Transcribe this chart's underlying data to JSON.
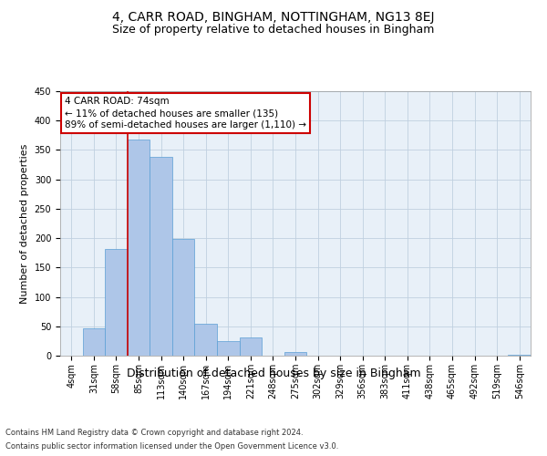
{
  "title": "4, CARR ROAD, BINGHAM, NOTTINGHAM, NG13 8EJ",
  "subtitle": "Size of property relative to detached houses in Bingham",
  "xlabel": "Distribution of detached houses by size in Bingham",
  "ylabel": "Number of detached properties",
  "bar_color": "#aec6e8",
  "bar_edge_color": "#5a9fd4",
  "categories": [
    "4sqm",
    "31sqm",
    "58sqm",
    "85sqm",
    "113sqm",
    "140sqm",
    "167sqm",
    "194sqm",
    "221sqm",
    "248sqm",
    "275sqm",
    "302sqm",
    "329sqm",
    "356sqm",
    "383sqm",
    "411sqm",
    "438sqm",
    "465sqm",
    "492sqm",
    "519sqm",
    "546sqm"
  ],
  "values": [
    0,
    47,
    182,
    368,
    338,
    199,
    54,
    25,
    31,
    0,
    6,
    0,
    0,
    0,
    0,
    0,
    0,
    0,
    0,
    0,
    1
  ],
  "ylim": [
    0,
    450
  ],
  "yticks": [
    0,
    50,
    100,
    150,
    200,
    250,
    300,
    350,
    400,
    450
  ],
  "property_line_x": 2.5,
  "annotation_text": "4 CARR ROAD: 74sqm\n← 11% of detached houses are smaller (135)\n89% of semi-detached houses are larger (1,110) →",
  "annotation_box_color": "#ffffff",
  "annotation_box_edge": "#cc0000",
  "footer_line1": "Contains HM Land Registry data © Crown copyright and database right 2024.",
  "footer_line2": "Contains public sector information licensed under the Open Government Licence v3.0.",
  "bg_color": "#ffffff",
  "grid_color": "#c0d0e0",
  "title_fontsize": 10,
  "subtitle_fontsize": 9,
  "tick_fontsize": 7,
  "ylabel_fontsize": 8,
  "xlabel_fontsize": 9,
  "annotation_fontsize": 7.5,
  "footer_fontsize": 6
}
